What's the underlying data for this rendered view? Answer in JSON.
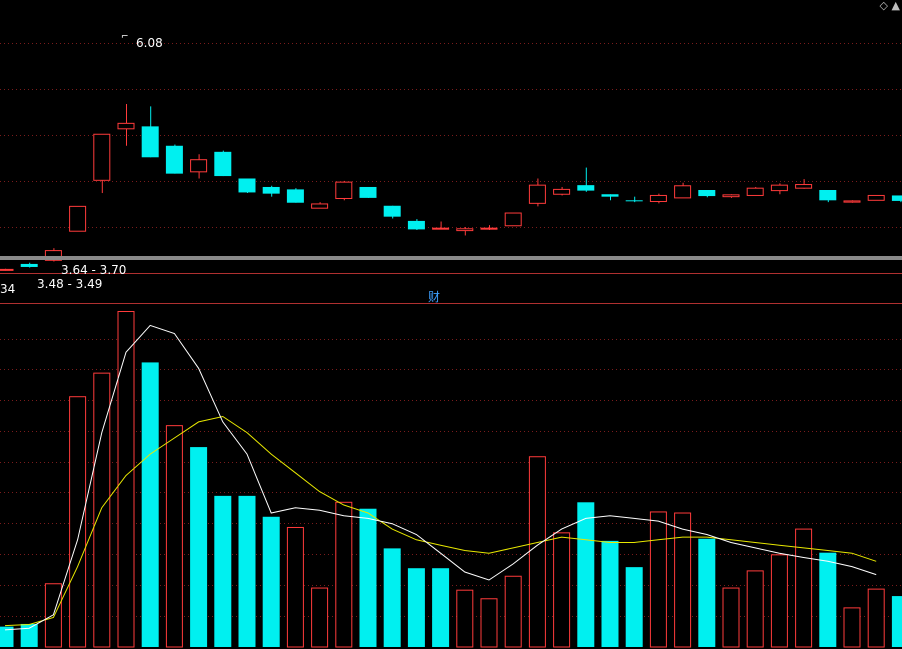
{
  "corner_icons": {
    "left": "◇",
    "right": "▲"
  },
  "panel_tag": "财",
  "chart_data": [
    {
      "type": "candlestick",
      "title": "",
      "annotations": {
        "high": "6.08",
        "range_upper": "3.64 - 3.70",
        "range_lower": "3.48 - 3.49",
        "left_edge": "34"
      },
      "up_color": "#ff3b3b",
      "down_color": "#00f0f0",
      "candles": [
        {
          "o": 3.34,
          "h": 3.36,
          "l": 3.33,
          "c": 3.35
        },
        {
          "o": 3.44,
          "h": 3.46,
          "l": 3.38,
          "c": 3.39
        },
        {
          "o": 3.5,
          "h": 3.7,
          "l": 3.48,
          "c": 3.66
        },
        {
          "o": 3.98,
          "h": 4.39,
          "l": 3.98,
          "c": 4.39
        },
        {
          "o": 4.82,
          "h": 5.58,
          "l": 4.61,
          "c": 5.58
        },
        {
          "o": 5.67,
          "h": 6.08,
          "l": 5.39,
          "c": 5.76
        },
        {
          "o": 5.71,
          "h": 6.04,
          "l": 5.2,
          "c": 5.2
        },
        {
          "o": 5.39,
          "h": 5.41,
          "l": 4.93,
          "c": 4.93
        },
        {
          "o": 4.96,
          "h": 5.25,
          "l": 4.85,
          "c": 5.16
        },
        {
          "o": 5.29,
          "h": 5.31,
          "l": 4.89,
          "c": 4.89
        },
        {
          "o": 4.85,
          "h": 4.85,
          "l": 4.61,
          "c": 4.62
        },
        {
          "o": 4.71,
          "h": 4.73,
          "l": 4.55,
          "c": 4.6
        },
        {
          "o": 4.67,
          "h": 4.69,
          "l": 4.45,
          "c": 4.45
        },
        {
          "o": 4.36,
          "h": 4.46,
          "l": 4.36,
          "c": 4.43
        },
        {
          "o": 4.52,
          "h": 4.81,
          "l": 4.49,
          "c": 4.79
        },
        {
          "o": 4.71,
          "h": 4.71,
          "l": 4.53,
          "c": 4.53
        },
        {
          "o": 4.4,
          "h": 4.4,
          "l": 4.19,
          "c": 4.22
        },
        {
          "o": 4.15,
          "h": 4.18,
          "l": 4.0,
          "c": 4.01
        },
        {
          "o": 4.02,
          "h": 4.14,
          "l": 4.02,
          "c": 4.03
        },
        {
          "o": 3.99,
          "h": 4.05,
          "l": 3.91,
          "c": 4.02
        },
        {
          "o": 4.03,
          "h": 4.08,
          "l": 4.0,
          "c": 4.03
        },
        {
          "o": 4.07,
          "h": 4.28,
          "l": 4.07,
          "c": 4.28
        },
        {
          "o": 4.44,
          "h": 4.85,
          "l": 4.39,
          "c": 4.74
        },
        {
          "o": 4.59,
          "h": 4.71,
          "l": 4.57,
          "c": 4.67
        },
        {
          "o": 4.74,
          "h": 5.03,
          "l": 4.63,
          "c": 4.65
        },
        {
          "o": 4.59,
          "h": 4.59,
          "l": 4.49,
          "c": 4.55
        },
        {
          "o": 4.49,
          "h": 4.55,
          "l": 4.46,
          "c": 4.48
        },
        {
          "o": 4.47,
          "h": 4.6,
          "l": 4.44,
          "c": 4.57
        },
        {
          "o": 4.53,
          "h": 4.78,
          "l": 4.53,
          "c": 4.73
        },
        {
          "o": 4.66,
          "h": 4.66,
          "l": 4.54,
          "c": 4.56
        },
        {
          "o": 4.55,
          "h": 4.59,
          "l": 4.53,
          "c": 4.58
        },
        {
          "o": 4.57,
          "h": 4.71,
          "l": 4.57,
          "c": 4.69
        },
        {
          "o": 4.65,
          "h": 4.77,
          "l": 4.59,
          "c": 4.74
        },
        {
          "o": 4.69,
          "h": 4.84,
          "l": 4.68,
          "c": 4.75
        },
        {
          "o": 4.66,
          "h": 4.66,
          "l": 4.46,
          "c": 4.49
        },
        {
          "o": 4.46,
          "h": 4.49,
          "l": 4.45,
          "c": 4.48
        },
        {
          "o": 4.49,
          "h": 4.57,
          "l": 4.49,
          "c": 4.57
        },
        {
          "o": 4.57,
          "h": 4.57,
          "l": 4.46,
          "c": 4.48
        }
      ]
    },
    {
      "type": "bar",
      "title": "",
      "values": [
        3.8,
        4.3,
        11.8,
        46.7,
        51.1,
        62.6,
        53.1,
        41.3,
        37.3,
        28.2,
        28.2,
        24.3,
        22.3,
        11.0,
        27.0,
        25.8,
        18.4,
        14.7,
        14.7,
        10.6,
        9.0,
        13.2,
        35.5,
        21.3,
        27.0,
        19.8,
        14.9,
        25.2,
        25.0,
        20.2,
        11.0,
        14.2,
        17.2,
        22.0,
        17.6,
        7.3,
        10.8,
        9.5
      ],
      "directions": [
        "down",
        "down",
        "up",
        "up",
        "up",
        "up",
        "down",
        "up",
        "down",
        "down",
        "down",
        "down",
        "up",
        "up",
        "up",
        "down",
        "down",
        "down",
        "down",
        "up",
        "up",
        "up",
        "up",
        "up",
        "down",
        "down",
        "down",
        "up",
        "up",
        "down",
        "up",
        "up",
        "up",
        "up",
        "down",
        "up",
        "up",
        "down"
      ],
      "ylim": [
        0,
        64
      ],
      "ma_white": [
        3.2,
        3.5,
        6.0,
        20.0,
        40.0,
        55.0,
        60.0,
        58.5,
        52.0,
        42.0,
        36.0,
        25.0,
        26.0,
        25.5,
        24.5,
        24.0,
        23.0,
        21.0,
        17.5,
        14.0,
        12.5,
        15.5,
        19.0,
        22.0,
        24.0,
        24.5,
        24.0,
        23.5,
        22.0,
        21.0,
        19.5,
        18.5,
        17.5,
        16.7,
        16.0,
        15.0,
        13.5
      ],
      "ma_yellow": [
        4.0,
        4.2,
        5.5,
        15.0,
        26.0,
        32.0,
        36.0,
        39.0,
        42.0,
        43.0,
        40.0,
        36.0,
        32.5,
        29.0,
        26.5,
        25.0,
        22.0,
        20.0,
        19.0,
        18.0,
        17.5,
        18.5,
        19.5,
        20.5,
        20.0,
        19.5,
        19.5,
        20.0,
        20.5,
        20.5,
        20.0,
        19.5,
        19.0,
        18.5,
        18.0,
        17.5,
        16.0
      ]
    }
  ]
}
